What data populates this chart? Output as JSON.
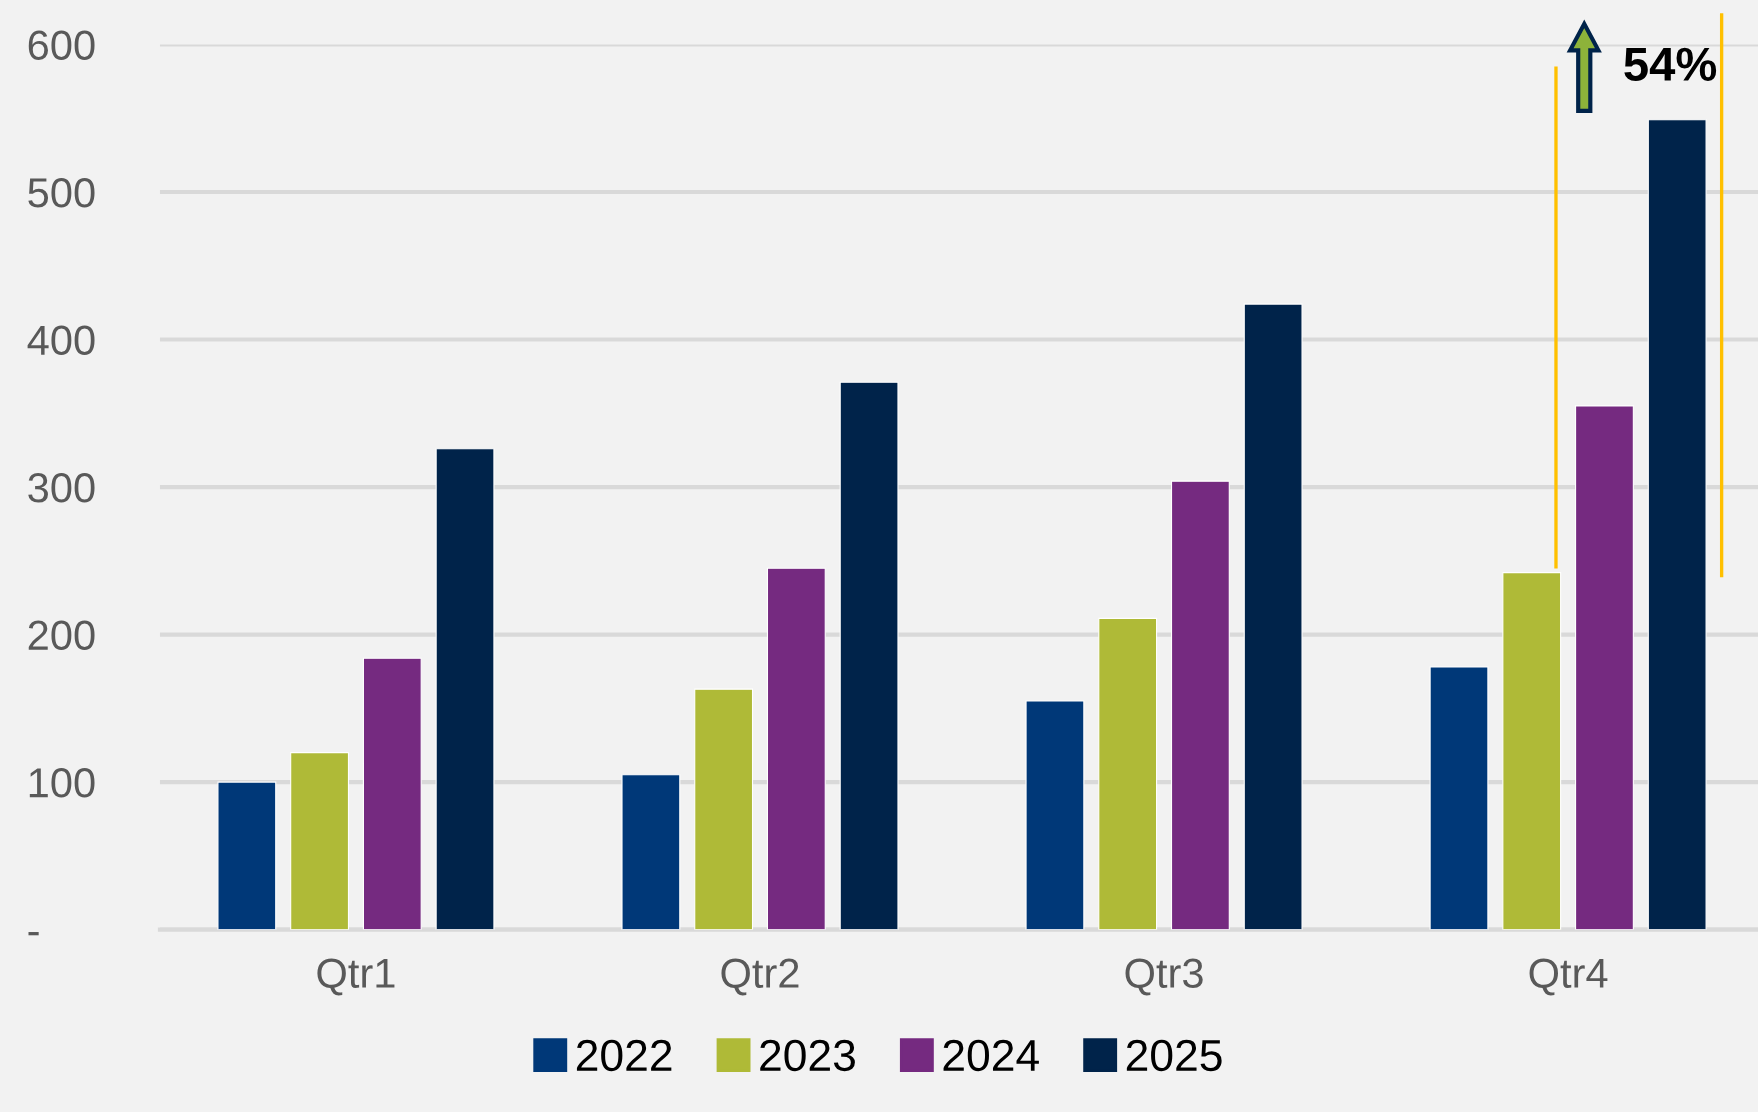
{
  "chart_data": {
    "type": "bar",
    "categories": [
      "Qtr1",
      "Qtr2",
      "Qtr3",
      "Qtr4"
    ],
    "series": [
      {
        "name": "2022",
        "color": "#003878",
        "values": [
          100,
          105,
          155,
          178
        ]
      },
      {
        "name": "2023",
        "color": "#afba37",
        "values": [
          120,
          163,
          211,
          242
        ]
      },
      {
        "name": "2024",
        "color": "#752a80",
        "values": [
          184,
          245,
          304,
          355
        ]
      },
      {
        "name": "2025",
        "color": "#00234a",
        "values": [
          326,
          371,
          424,
          549
        ]
      }
    ],
    "ylim": [
      0,
      600
    ],
    "yticks": [
      {
        "value": 0,
        "label": "-"
      },
      100,
      200,
      300,
      400,
      500,
      600
    ],
    "grid": "y",
    "legend": "bottom",
    "annotations": [
      "54%"
    ]
  }
}
